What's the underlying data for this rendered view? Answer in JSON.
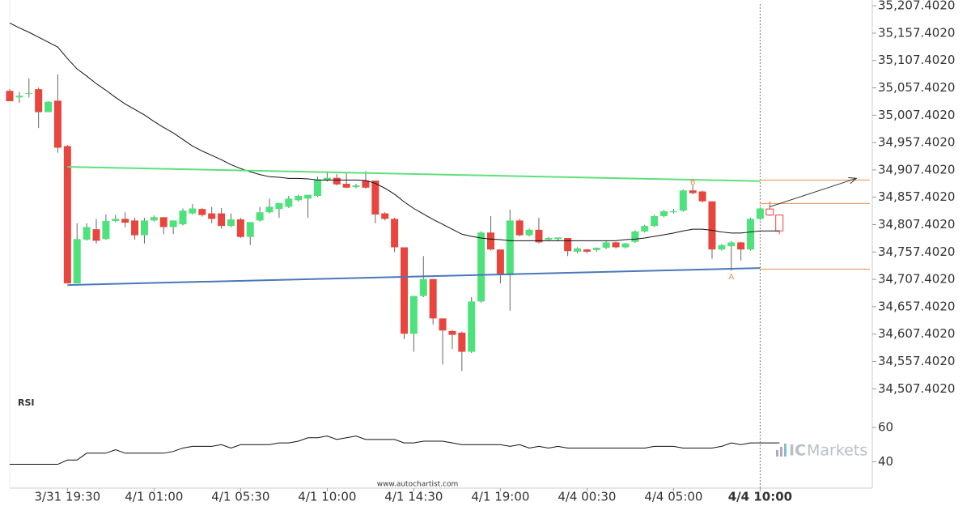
{
  "chart_data": {
    "type": "candlestick",
    "categories": [
      null,
      null,
      null,
      null,
      null,
      null,
      "3/31 19:30",
      null,
      null,
      null,
      null,
      null,
      null,
      null,
      null,
      "4/1 01:00",
      null,
      null,
      null,
      null,
      null,
      null,
      null,
      null,
      "4/1 05:30",
      null,
      null,
      null,
      null,
      null,
      null,
      null,
      null,
      "4/1 10:00",
      null,
      null,
      null,
      null,
      null,
      null,
      null,
      null,
      "4/1 14:30",
      null,
      null,
      null,
      null,
      null,
      null,
      null,
      null,
      "4/1 19:00",
      null,
      null,
      null,
      null,
      null,
      null,
      null,
      null,
      "4/4 00:30",
      null,
      null,
      null,
      null,
      null,
      null,
      null,
      null,
      "4/4 05:00",
      null,
      null,
      null,
      null,
      null,
      null,
      null,
      null,
      "4/4 10:00",
      null,
      null
    ],
    "open": [
      35052,
      35040,
      35047,
      35055,
      35013,
      35034,
      34951,
      34700,
      34780,
      34799,
      34781,
      34814,
      34818,
      34815,
      34788,
      34815,
      34821,
      34803,
      34808,
      34828,
      34836,
      34828,
      34828,
      34805,
      34817,
      34785,
      34815,
      34830,
      34836,
      34840,
      34852,
      34855,
      34860,
      34888,
      34893,
      34882,
      34876,
      34888,
      34888,
      34828,
      34818,
      34766,
      34608,
      34677,
      34708,
      34636,
      34613,
      34610,
      34575,
      34667,
      34793,
      34762,
      34715,
      34815,
      34788,
      34798,
      34780,
      34781,
      34783,
      34758,
      34762,
      34761,
      34765,
      34775,
      34766,
      34776,
      34795,
      34805,
      34823,
      34830,
      34833,
      34870,
      34868,
      34850,
      34762,
      34768,
      34775,
      34762,
      34818,
      34836,
      34825
    ],
    "high": [
      35055,
      35050,
      35075,
      35058,
      35033,
      35082,
      34953,
      34810,
      34810,
      34818,
      34826,
      34825,
      34830,
      34820,
      34820,
      34824,
      34821,
      34815,
      34837,
      34845,
      34838,
      34840,
      34838,
      34828,
      34820,
      34812,
      34840,
      34855,
      34847,
      34860,
      34862,
      34862,
      34895,
      34905,
      34900,
      34903,
      34882,
      34905,
      34888,
      34830,
      34820,
      34766,
      34677,
      34750,
      34708,
      34636,
      34615,
      34612,
      34675,
      34795,
      34823,
      34762,
      34835,
      34818,
      34800,
      34820,
      34785,
      34784,
      34783,
      34766,
      34763,
      34766,
      34777,
      34776,
      34774,
      34797,
      34807,
      34825,
      34834,
      34836,
      34872,
      34880,
      34870,
      34850,
      34772,
      34777,
      34776,
      34820,
      34839,
      34850,
      34826
    ],
    "low": [
      35033,
      35030,
      35040,
      34984,
      35013,
      34939,
      34700,
      34700,
      34778,
      34773,
      34780,
      34812,
      34803,
      34780,
      34773,
      34813,
      34790,
      34790,
      34806,
      34826,
      34822,
      34810,
      34800,
      34803,
      34783,
      34770,
      34813,
      34828,
      34820,
      34838,
      34850,
      34820,
      34858,
      34886,
      34879,
      34874,
      34874,
      34873,
      34810,
      34815,
      34757,
      34598,
      34575,
      34675,
      34625,
      34552,
      34580,
      34540,
      34573,
      34665,
      34760,
      34700,
      34650,
      34786,
      34786,
      34773,
      34778,
      34778,
      34750,
      34755,
      34755,
      34758,
      34763,
      34764,
      34764,
      34774,
      34793,
      34803,
      34821,
      34828,
      34831,
      34863,
      34848,
      34745,
      34760,
      34723,
      34742,
      34760,
      34816,
      34823,
      34790
    ],
    "close": [
      35033,
      35043,
      35048,
      35013,
      35032,
      34948,
      34700,
      34781,
      34803,
      34778,
      34814,
      34818,
      34811,
      34788,
      34815,
      34821,
      34803,
      34815,
      34833,
      34837,
      34825,
      34818,
      34805,
      34817,
      34785,
      34812,
      34830,
      34840,
      34847,
      34855,
      34860,
      34862,
      34890,
      34893,
      34881,
      34875,
      34879,
      34875,
      34826,
      34818,
      34766,
      34608,
      34677,
      34708,
      34636,
      34614,
      34606,
      34575,
      34667,
      34793,
      34762,
      34715,
      34815,
      34788,
      34798,
      34775,
      34783,
      34784,
      34759,
      34764,
      34758,
      34765,
      34775,
      34766,
      34773,
      34795,
      34805,
      34823,
      34832,
      34832,
      34870,
      34865,
      34850,
      34762,
      34770,
      34775,
      34762,
      34818,
      34837,
      34825,
      34796
    ],
    "up_color": "#4ee27c",
    "down_color": "#e8453f",
    "hollow_from": 79,
    "highlight_index": 78,
    "series": [
      {
        "color": "#111111",
        "values": [
          35176,
          35167,
          35159,
          35150,
          35141,
          35132,
          35111,
          35092,
          35079,
          35065,
          35053,
          35040,
          35028,
          35018,
          35008,
          34996,
          34985,
          34975,
          34963,
          34951,
          34942,
          34934,
          34926,
          34917,
          34910,
          34904,
          34899,
          34895,
          34894,
          34892,
          34892,
          34891,
          34889,
          34889,
          34889,
          34889,
          34889,
          34888,
          34883,
          34874,
          34863,
          34849,
          34837,
          34827,
          34817,
          34808,
          34799,
          34790,
          34786,
          34783,
          34781,
          34780,
          34778,
          34778,
          34778,
          34778,
          34778,
          34778,
          34778,
          34778,
          34778,
          34778,
          34778,
          34778,
          34780,
          34781,
          34783,
          34786,
          34789,
          34792,
          34796,
          34799,
          34799,
          34797,
          34794,
          34792,
          34792,
          34794,
          34796,
          34796,
          34796
        ]
      }
    ],
    "trendlines": [
      {
        "x": [
          6,
          78
        ],
        "y": [
          34913,
          34887
        ],
        "color": "#5ee07c"
      },
      {
        "x": [
          6,
          78
        ],
        "y": [
          34697,
          34728
        ],
        "color": "#4a78b8"
      }
    ],
    "arrow": {
      "x": [
        79,
        88
      ],
      "y": [
        34840,
        34892
      ],
      "color": "#333333"
    },
    "levels": {
      "x": 78,
      "values": [
        34889,
        34846,
        34726
      ],
      "color": "#e8904a"
    },
    "points": [
      {
        "label": "B",
        "x": 71,
        "y": 34885
      },
      {
        "label": "A",
        "x": 75,
        "y": 34712
      }
    ],
    "ylim": [
      34493,
      35218
    ],
    "yticks": [
      {
        "value": 35207.402,
        "label": "35,207.4020"
      },
      {
        "value": 35157.402,
        "label": "35,157.4020"
      },
      {
        "value": 35107.402,
        "label": "35,107.4020"
      },
      {
        "value": 35057.402,
        "label": "35,057.4020"
      },
      {
        "value": 35007.402,
        "label": "35,007.4020"
      },
      {
        "value": 34957.402,
        "label": "34,957.4020"
      },
      {
        "value": 34907.402,
        "label": "34,907.4020"
      },
      {
        "value": 34857.402,
        "label": "34,857.4020"
      },
      {
        "value": 34807.402,
        "label": "34,807.4020"
      },
      {
        "value": 34757.402,
        "label": "34,757.4020"
      },
      {
        "value": 34707.402,
        "label": "34,707.4020"
      },
      {
        "value": 34657.402,
        "label": "34,657.4020"
      },
      {
        "value": 34607.402,
        "label": "34,607.4020"
      },
      {
        "value": 34557.402,
        "label": "34,557.4020"
      },
      {
        "value": 34507.402,
        "label": "34,507.4020"
      }
    ],
    "rsi": {
      "title": "RSI",
      "color": "#111111",
      "ylim": [
        26,
        78
      ],
      "yticks": [
        40,
        60
      ],
      "values": [
        38.5,
        38.5,
        38.5,
        38.5,
        38.5,
        38.5,
        41,
        41,
        45,
        45,
        45,
        47,
        45,
        45,
        45,
        45,
        45,
        46,
        48,
        49,
        49,
        49,
        50,
        48,
        50,
        50,
        50,
        50,
        51,
        51,
        52,
        54,
        54,
        55,
        53,
        54,
        55,
        53,
        53,
        53,
        53,
        51,
        51,
        52,
        52,
        52,
        51,
        50,
        50,
        50,
        50,
        50,
        49,
        50,
        48,
        49,
        48,
        49,
        48,
        48,
        48,
        48,
        48,
        48,
        48,
        48,
        48,
        49,
        49,
        49,
        48,
        48,
        48,
        48,
        49,
        51,
        50,
        51,
        51,
        51,
        51
      ]
    },
    "watermark": "www.autochartist.com",
    "logo": [
      "IC",
      "Markets"
    ]
  }
}
